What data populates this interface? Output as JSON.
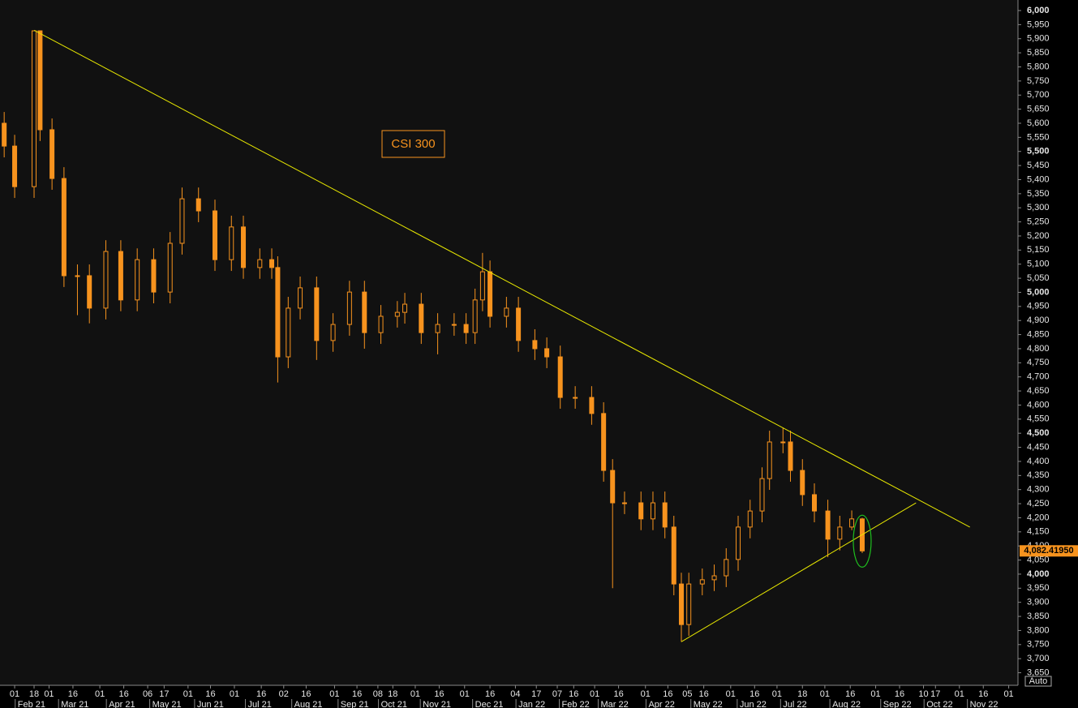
{
  "chart_data": {
    "type": "candlestick",
    "title": "CSI 300",
    "color": "#f7931e",
    "trendline_color": "#e8e800",
    "marker_color": "#1fbf1f",
    "x": [
      28,
      35,
      48,
      52,
      60,
      68,
      77,
      85,
      96,
      106,
      117,
      128,
      139,
      147,
      158,
      169,
      180,
      188,
      199,
      207,
      211,
      218,
      226,
      237,
      248,
      259,
      269,
      280,
      291,
      296,
      307,
      318,
      329,
      337,
      343,
      348,
      353,
      364,
      372,
      383,
      391,
      400,
      410,
      421,
      429,
      435,
      443,
      454,
      462,
      470,
      476,
      481,
      486,
      495,
      503,
      511,
      519,
      527,
      535,
      540,
      549,
      554,
      562,
      570,
      579,
      587,
      595,
      602
    ],
    "open": [
      5600,
      5519,
      5375,
      5928,
      5577,
      5404,
      5059,
      5059,
      4944,
      5145,
      4973,
      5116,
      5001,
      5174,
      5332,
      5289,
      5116,
      5232,
      5088,
      5116,
      5088,
      4771,
      4944,
      5016,
      4829,
      4886,
      5001,
      4857,
      4915,
      4929,
      4958,
      4857,
      4886,
      4886,
      4857,
      4973,
      5073,
      4915,
      4944,
      4829,
      4800,
      4771,
      4627,
      4627,
      4570,
      4368,
      4253,
      4253,
      4196,
      4253,
      4167,
      3965,
      3821,
      3965,
      3980,
      3994,
      4052,
      4167,
      4224,
      4339,
      4469,
      4469,
      4368,
      4282,
      4224,
      4124,
      4167,
      4196
    ],
    "high": [
      5640,
      5559,
      5930,
      5928,
      5617,
      5444,
      5099,
      5099,
      5185,
      5185,
      5156,
      5156,
      5214,
      5372,
      5372,
      5329,
      5272,
      5272,
      5156,
      5156,
      5128,
      4984,
      5056,
      5056,
      4926,
      5041,
      5041,
      4955,
      4969,
      4998,
      4998,
      4926,
      4926,
      4926,
      5013,
      5140,
      5113,
      4984,
      4984,
      4869,
      4840,
      4811,
      4667,
      4667,
      4610,
      4408,
      4293,
      4293,
      4293,
      4293,
      4207,
      4005,
      4005,
      4020,
      4034,
      4092,
      4207,
      4264,
      4379,
      4509,
      4520,
      4509,
      4408,
      4322,
      4264,
      4207,
      4226,
      4200
    ],
    "low": [
      5479,
      5335,
      5335,
      5537,
      5364,
      5019,
      4919,
      4890,
      4904,
      4933,
      4933,
      4961,
      4961,
      5134,
      5249,
      5076,
      5076,
      5048,
      5048,
      5048,
      4680,
      4731,
      4904,
      4760,
      4789,
      4846,
      4800,
      4817,
      4875,
      4889,
      4817,
      4780,
      4846,
      4817,
      4817,
      4933,
      4875,
      4875,
      4789,
      4760,
      4731,
      4587,
      4587,
      4530,
      4328,
      3950,
      4213,
      4156,
      4156,
      4127,
      3925,
      3760,
      3781,
      3925,
      3940,
      3954,
      4012,
      4127,
      4184,
      4299,
      4429,
      4328,
      4242,
      4184,
      4060,
      4084,
      4156,
      4075
    ],
    "close": [
      5519,
      5375,
      5928,
      5577,
      5404,
      5059,
      5059,
      4944,
      5145,
      4973,
      5116,
      5001,
      5174,
      5332,
      5289,
      5116,
      5232,
      5088,
      5116,
      5088,
      4771,
      4944,
      5016,
      4829,
      4886,
      5001,
      4857,
      4915,
      4929,
      4958,
      4857,
      4886,
      4886,
      4857,
      4973,
      5073,
      4915,
      4944,
      4829,
      4800,
      4771,
      4627,
      4627,
      4570,
      4368,
      4253,
      4253,
      4196,
      4253,
      4167,
      3965,
      3821,
      3965,
      3980,
      3994,
      4052,
      4167,
      4224,
      4339,
      4469,
      4469,
      4368,
      4282,
      4224,
      4124,
      4167,
      4196,
      4082.4195
    ],
    "last_price": {
      "value": 4082.4195,
      "label": "4,082.41950"
    },
    "trendlines": [
      {
        "x": [
          48,
          674
        ],
        "y": [
          5930,
          4167
        ]
      },
      {
        "x": [
          481,
          638
        ],
        "y": [
          3760,
          4253
        ]
      }
    ],
    "xlim": [
      25.2,
      706.2
    ],
    "ylim": [
      3605.5,
      6037.4
    ],
    "yticks": [
      {
        "value": 3650,
        "label": "3,650"
      },
      {
        "value": 3700,
        "label": "3,700"
      },
      {
        "value": 3750,
        "label": "3,750"
      },
      {
        "value": 3800,
        "label": "3,800"
      },
      {
        "value": 3850,
        "label": "3,850"
      },
      {
        "value": 3900,
        "label": "3,900"
      },
      {
        "value": 3950,
        "label": "3,950"
      },
      {
        "value": 4000,
        "label": "4,000"
      },
      {
        "value": 4050,
        "label": "4,050"
      },
      {
        "value": 4100,
        "label": "4,100"
      },
      {
        "value": 4150,
        "label": "4,150"
      },
      {
        "value": 4200,
        "label": "4,200"
      },
      {
        "value": 4250,
        "label": "4,250"
      },
      {
        "value": 4300,
        "label": "4,300"
      },
      {
        "value": 4350,
        "label": "4,350"
      },
      {
        "value": 4400,
        "label": "4,400"
      },
      {
        "value": 4450,
        "label": "4,450"
      },
      {
        "value": 4500,
        "label": "4,500"
      },
      {
        "value": 4550,
        "label": "4,550"
      },
      {
        "value": 4600,
        "label": "4,600"
      },
      {
        "value": 4650,
        "label": "4,650"
      },
      {
        "value": 4700,
        "label": "4,700"
      },
      {
        "value": 4750,
        "label": "4,750"
      },
      {
        "value": 4800,
        "label": "4,800"
      },
      {
        "value": 4850,
        "label": "4,850"
      },
      {
        "value": 4900,
        "label": "4,900"
      },
      {
        "value": 4950,
        "label": "4,950"
      },
      {
        "value": 5000,
        "label": "5,000"
      },
      {
        "value": 5050,
        "label": "5,050"
      },
      {
        "value": 5100,
        "label": "5,100"
      },
      {
        "value": 5150,
        "label": "5,150"
      },
      {
        "value": 5200,
        "label": "5,200"
      },
      {
        "value": 5250,
        "label": "5,250"
      },
      {
        "value": 5300,
        "label": "5,300"
      },
      {
        "value": 5350,
        "label": "5,350"
      },
      {
        "value": 5400,
        "label": "5,400"
      },
      {
        "value": 5450,
        "label": "5,450"
      },
      {
        "value": 5500,
        "label": "5,500"
      },
      {
        "value": 5550,
        "label": "5,550"
      },
      {
        "value": 5600,
        "label": "5,600"
      },
      {
        "value": 5650,
        "label": "5,650"
      },
      {
        "value": 5700,
        "label": "5,700"
      },
      {
        "value": 5750,
        "label": "5,750"
      },
      {
        "value": 5800,
        "label": "5,800"
      },
      {
        "value": 5850,
        "label": "5,850"
      },
      {
        "value": 5900,
        "label": "5,900"
      },
      {
        "value": 5950,
        "label": "5,950"
      },
      {
        "value": 6000,
        "label": "6,000"
      }
    ],
    "xticks": [
      {
        "value": 35,
        "label": "01"
      },
      {
        "value": 48,
        "label": "18"
      },
      {
        "value": 58,
        "label": "01"
      },
      {
        "value": 74,
        "label": "16"
      },
      {
        "value": 92,
        "label": "01"
      },
      {
        "value": 108,
        "label": "16"
      },
      {
        "value": 124,
        "label": "06"
      },
      {
        "value": 135,
        "label": "17"
      },
      {
        "value": 151,
        "label": "01"
      },
      {
        "value": 166,
        "label": "16"
      },
      {
        "value": 182,
        "label": "01"
      },
      {
        "value": 200,
        "label": "16"
      },
      {
        "value": 215,
        "label": "02"
      },
      {
        "value": 230,
        "label": "16"
      },
      {
        "value": 249,
        "label": "01"
      },
      {
        "value": 264,
        "label": "16"
      },
      {
        "value": 278,
        "label": "08"
      },
      {
        "value": 288,
        "label": "18"
      },
      {
        "value": 303,
        "label": "01"
      },
      {
        "value": 319,
        "label": "16"
      },
      {
        "value": 336,
        "label": "01"
      },
      {
        "value": 353,
        "label": "16"
      },
      {
        "value": 370,
        "label": "04"
      },
      {
        "value": 384,
        "label": "17"
      },
      {
        "value": 398,
        "label": "07"
      },
      {
        "value": 409,
        "label": "16"
      },
      {
        "value": 423,
        "label": "01"
      },
      {
        "value": 439,
        "label": "16"
      },
      {
        "value": 457,
        "label": "01"
      },
      {
        "value": 472,
        "label": "16"
      },
      {
        "value": 485,
        "label": "05"
      },
      {
        "value": 496,
        "label": "16"
      },
      {
        "value": 514,
        "label": "01"
      },
      {
        "value": 530,
        "label": "16"
      },
      {
        "value": 545,
        "label": "01"
      },
      {
        "value": 562,
        "label": "18"
      },
      {
        "value": 577,
        "label": "01"
      },
      {
        "value": 594,
        "label": "16"
      },
      {
        "value": 611,
        "label": "01"
      },
      {
        "value": 627,
        "label": "16"
      },
      {
        "value": 643,
        "label": "10"
      },
      {
        "value": 651,
        "label": "17"
      },
      {
        "value": 667,
        "label": "01"
      },
      {
        "value": 683,
        "label": "16"
      },
      {
        "value": 700,
        "label": "01"
      }
    ],
    "month_ticks": [
      {
        "value": 37,
        "label": "Feb 21"
      },
      {
        "value": 66,
        "label": "Mar 21"
      },
      {
        "value": 98,
        "label": "Apr 21"
      },
      {
        "value": 127,
        "label": "May 21"
      },
      {
        "value": 157,
        "label": "Jun 21"
      },
      {
        "value": 191,
        "label": "Jul 21"
      },
      {
        "value": 222,
        "label": "Aug 21"
      },
      {
        "value": 253,
        "label": "Sep 21"
      },
      {
        "value": 280,
        "label": "Oct 21"
      },
      {
        "value": 308,
        "label": "Nov 21"
      },
      {
        "value": 343,
        "label": "Dec 21"
      },
      {
        "value": 372,
        "label": "Jan 22"
      },
      {
        "value": 401,
        "label": "Feb 22"
      },
      {
        "value": 427,
        "label": "Mar 22"
      },
      {
        "value": 459,
        "label": "Apr 22"
      },
      {
        "value": 489,
        "label": "May 22"
      },
      {
        "value": 520,
        "label": "Jun 22"
      },
      {
        "value": 549,
        "label": "Jul 22"
      },
      {
        "value": 582,
        "label": "Aug 22"
      },
      {
        "value": 616,
        "label": "Sep 22"
      },
      {
        "value": 645,
        "label": "Oct 22"
      },
      {
        "value": 674,
        "label": "Nov 22"
      }
    ],
    "scale_mode": "Auto"
  }
}
